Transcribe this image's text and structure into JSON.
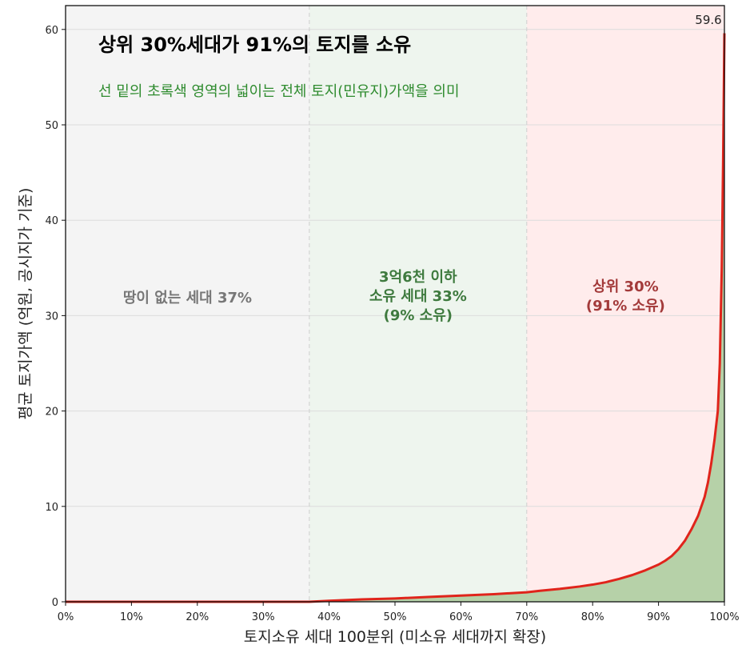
{
  "chart_data": {
    "type": "area",
    "title": "상위 30%세대가 91%의 토지를 소유",
    "subtitle": "선 밑의 초록색 영역의 넓이는 전체 토지(민유지)가액을 의미",
    "xlabel": "토지소유 세대 100분위 (미소유 세대까지 확장)",
    "ylabel": "평균 토지가액 (억원, 공시지가 기준)",
    "xlim": [
      0,
      100
    ],
    "ylim": [
      0,
      62.5
    ],
    "x_ticks": [
      "0%",
      "10%",
      "20%",
      "30%",
      "40%",
      "50%",
      "60%",
      "70%",
      "80%",
      "90%",
      "100%"
    ],
    "y_ticks": [
      "0",
      "10",
      "20",
      "30",
      "40",
      "50",
      "60"
    ],
    "grid": true,
    "regions": [
      {
        "name": "no-land",
        "from": 0,
        "to": 37,
        "color": "#f4f4f4",
        "label_lines": [
          "땅이 없는 세대 37%"
        ],
        "label_color": "#777777"
      },
      {
        "name": "small-owners",
        "from": 37,
        "to": 70,
        "color": "#eef5ee",
        "label_lines": [
          "3억6천 이하",
          "소유 세대 33%",
          "(9% 소유)"
        ],
        "label_color": "#3e7a3e"
      },
      {
        "name": "top-30",
        "from": 70,
        "to": 100,
        "color": "#ffecec",
        "label_lines": [
          "상위 30%",
          "(91% 소유)"
        ],
        "label_color": "#a33a3a"
      }
    ],
    "peak_label": "59.6",
    "series": [
      {
        "line_color": "#e0241b",
        "fill_color": "#b6d1a8",
        "x": [
          0,
          37,
          40,
          45,
          50,
          55,
          60,
          65,
          70,
          72,
          75,
          78,
          80,
          82,
          84,
          86,
          88,
          90,
          91,
          92,
          93,
          94,
          95,
          96,
          97,
          97.5,
          98,
          98.5,
          99,
          99.3,
          99.6,
          99.8,
          100
        ],
        "y": [
          0,
          0,
          0.1,
          0.25,
          0.35,
          0.5,
          0.65,
          0.8,
          1.0,
          1.15,
          1.35,
          1.6,
          1.8,
          2.05,
          2.4,
          2.8,
          3.3,
          3.9,
          4.3,
          4.8,
          5.5,
          6.4,
          7.6,
          9.0,
          11.0,
          12.5,
          14.5,
          17.0,
          20.0,
          25.0,
          35.0,
          46.0,
          59.6
        ]
      }
    ]
  }
}
